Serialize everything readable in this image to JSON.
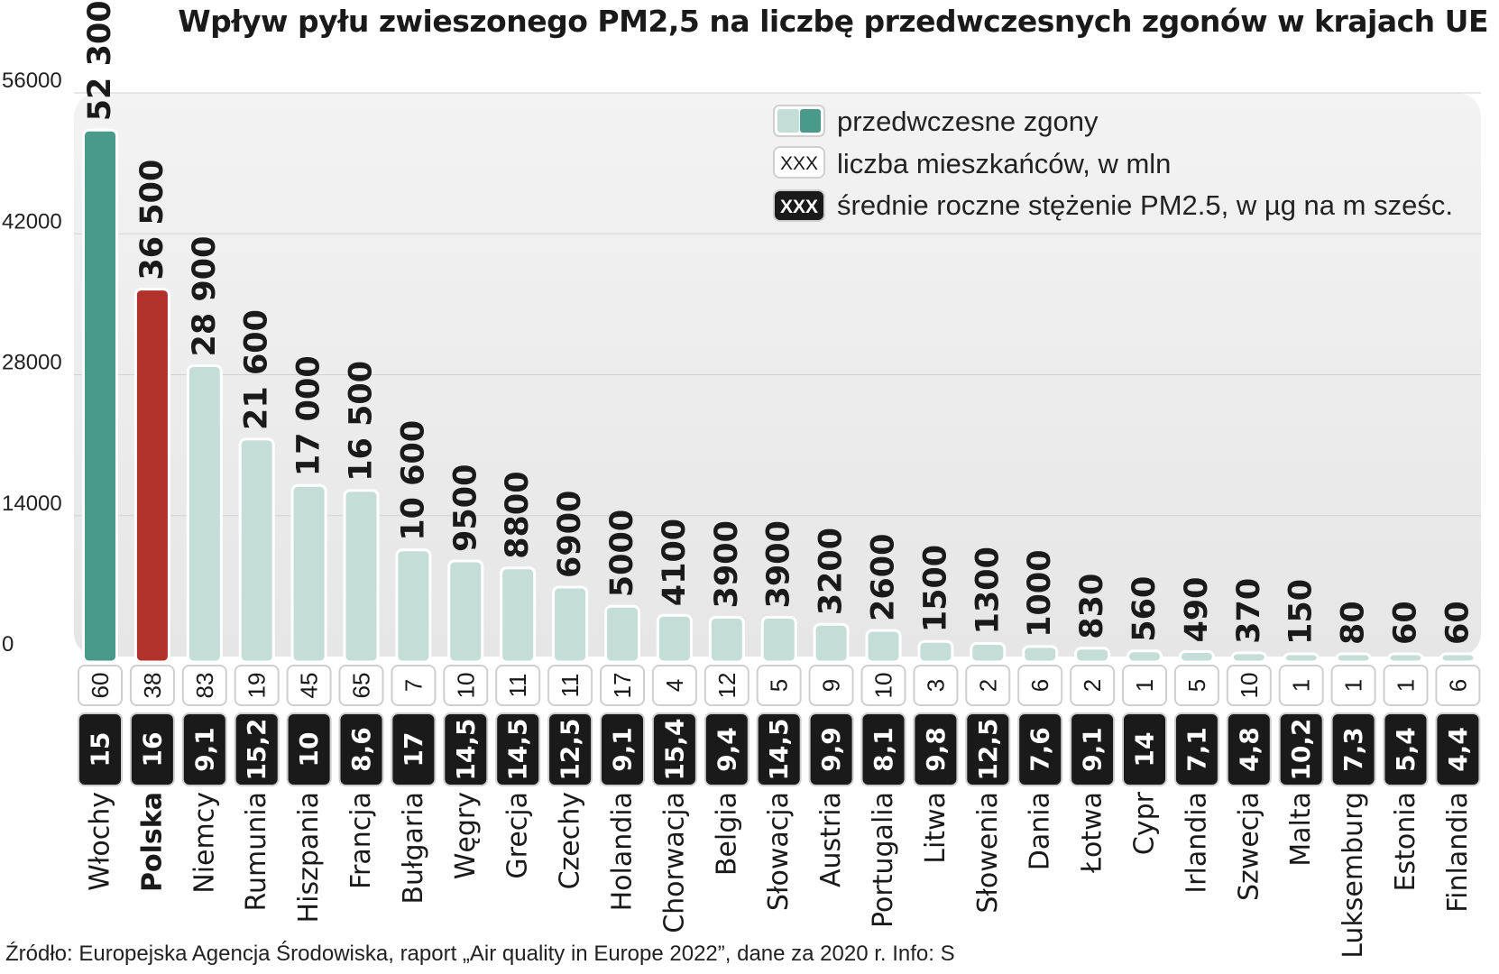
{
  "colors": {
    "highlight_primary": "#4a9a8b",
    "highlight_secondary": "#b0322a",
    "bar_default": "#c5ddd7",
    "pm_box": "#1a1a1a",
    "panel_background": "#ececec"
  },
  "legend": {
    "deaths": "przedwczesne zgony",
    "population": "liczba mieszkańców,  w mln",
    "pm25": "średnie roczne stężenie PM2.5, w µg na m sześc.",
    "marker": "XXX"
  },
  "source": "Źródło: Europejska Agencja Środowiska, raport „Air quality in Europe 2022”, dane za 2020 r.   Info: S",
  "chart_data": {
    "type": "bar",
    "title": "Wpływ pyłu zwieszonego PM2,5 na liczbę przedwczesnych zgonów w krajach UE",
    "ylim": [
      0,
      56000
    ],
    "yticks": [
      "0",
      "14000",
      "28000",
      "42000",
      "56000"
    ],
    "grid": true,
    "legend_position": "top-right",
    "categories": [
      "Włochy",
      "Polska",
      "Niemcy",
      "Rumunia",
      "Hiszpania",
      "Francja",
      "Bułgaria",
      "Węgry",
      "Grecja",
      "Czechy",
      "Holandia",
      "Chorwacja",
      "Belgia",
      "Słowacja",
      "Austria",
      "Portugalia",
      "Litwa",
      "Słowenia",
      "Dania",
      "Łotwa",
      "Cypr",
      "Irlandia",
      "Szwecja",
      "Malta",
      "Luksemburg",
      "Estonia",
      "Finlandia"
    ],
    "values": [
      52300,
      36500,
      28900,
      21600,
      17000,
      16500,
      10600,
      9500,
      8800,
      6900,
      5000,
      4100,
      3900,
      3900,
      3200,
      2600,
      1500,
      1300,
      1000,
      830,
      560,
      490,
      370,
      150,
      80,
      60,
      60
    ],
    "value_labels": [
      "52 300",
      "36 500",
      "28 900",
      "21 600",
      "17 000",
      "16 500",
      "10 600",
      "9500",
      "8800",
      "6900",
      "5000",
      "4100",
      "3900",
      "3900",
      "3200",
      "2600",
      "1500",
      "1300",
      "1000",
      "830",
      "560",
      "490",
      "370",
      "150",
      "80",
      "60",
      "60"
    ],
    "population_mln": [
      "60",
      "38",
      "83",
      "19",
      "45",
      "65",
      "7",
      "10",
      "11",
      "11",
      "17",
      "4",
      "12",
      "5",
      "9",
      "10",
      "3",
      "2",
      "6",
      "2",
      "1",
      "5",
      "10",
      "1",
      "1",
      "1",
      "6"
    ],
    "pm25": [
      "15",
      "16",
      "9,1",
      "15,2",
      "10",
      "8,6",
      "17",
      "14,5",
      "14,5",
      "12,5",
      "9,1",
      "15,4",
      "9,4",
      "14,5",
      "9,9",
      "8,1",
      "9,8",
      "12,5",
      "7,6",
      "9,1",
      "14",
      "7,1",
      "4,8",
      "10,2",
      "7,3",
      "5,4",
      "4,4"
    ],
    "highlight_primary": "Włochy",
    "highlight_secondary": "Polska"
  }
}
